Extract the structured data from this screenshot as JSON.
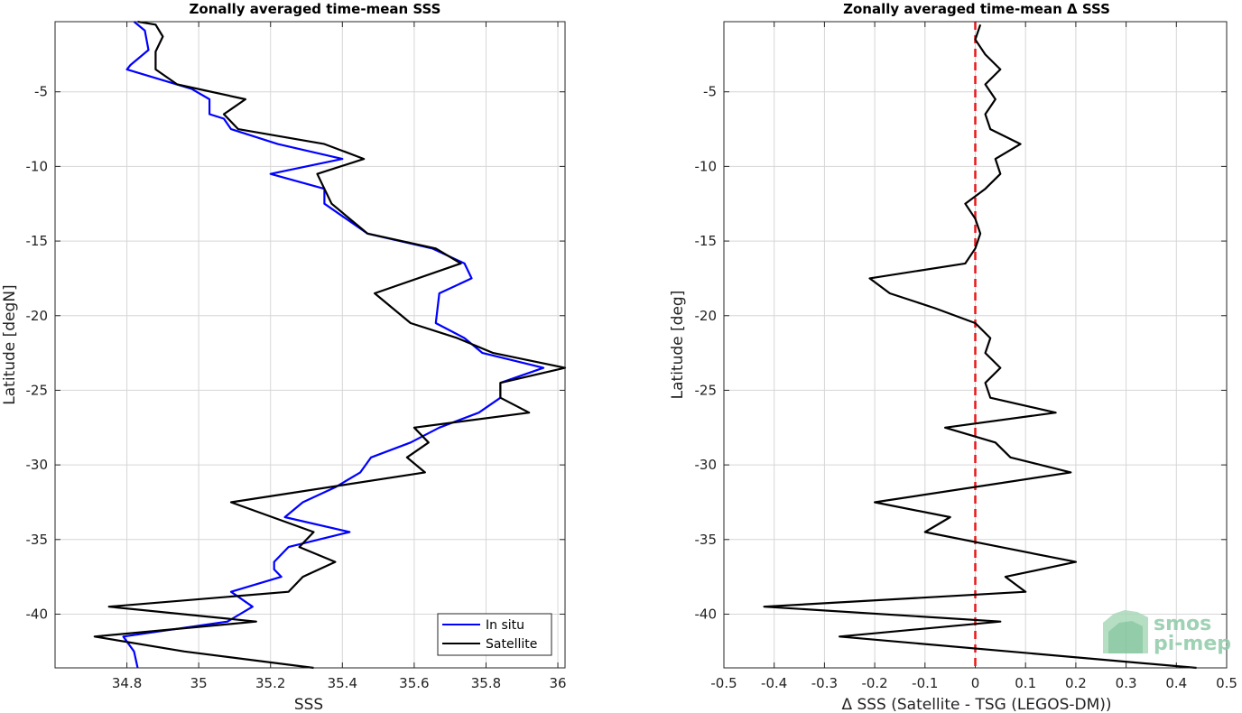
{
  "colors": {
    "in_situ": "#0000ff",
    "satellite": "#000000",
    "zero_line": "#e8191b",
    "grid": "#d6d6d6"
  },
  "logo": {
    "line1": "smos",
    "line2": "pi-mep"
  },
  "chart_data": [
    {
      "type": "line",
      "title": "Zonally averaged time-mean SSS",
      "xlabel": "SSS",
      "ylabel": "Latitude [degN]",
      "xlim": [
        34.6,
        36.02
      ],
      "ylim": [
        -43.6,
        -0.3
      ],
      "xticks": [
        34.8,
        35,
        35.2,
        35.4,
        35.6,
        35.8,
        36
      ],
      "xtick_labels": [
        "34.8",
        "35",
        "35.2",
        "35.4",
        "35.6",
        "35.8",
        "36"
      ],
      "yticks": [
        -5,
        -10,
        -15,
        -20,
        -25,
        -30,
        -35,
        -40
      ],
      "ytick_labels": [
        "-5",
        "-10",
        "-15",
        "-20",
        "-25",
        "-30",
        "-35",
        "-40"
      ],
      "grid": true,
      "legend_position": "bottom-right",
      "series": [
        {
          "name": "In situ",
          "color": "#0000ff",
          "points": [
            [
              34.82,
              -0.3
            ],
            [
              34.85,
              -0.9
            ],
            [
              34.86,
              -2.2
            ],
            [
              34.81,
              -3.2
            ],
            [
              34.8,
              -3.5
            ],
            [
              34.98,
              -4.8
            ],
            [
              35.03,
              -5.5
            ],
            [
              35.03,
              -6.5
            ],
            [
              35.07,
              -6.8
            ],
            [
              35.09,
              -7.5
            ],
            [
              35.22,
              -8.5
            ],
            [
              35.4,
              -9.5
            ],
            [
              35.2,
              -10.5
            ],
            [
              35.35,
              -11.5
            ],
            [
              35.35,
              -12.5
            ],
            [
              35.47,
              -14.5
            ],
            [
              35.65,
              -15.5
            ],
            [
              35.74,
              -16.5
            ],
            [
              35.76,
              -17.5
            ],
            [
              35.67,
              -18.5
            ],
            [
              35.66,
              -20.5
            ],
            [
              35.74,
              -21.5
            ],
            [
              35.79,
              -22.5
            ],
            [
              35.96,
              -23.5
            ],
            [
              35.84,
              -24.5
            ],
            [
              35.84,
              -25.5
            ],
            [
              35.78,
              -26.5
            ],
            [
              35.67,
              -27.5
            ],
            [
              35.59,
              -28.5
            ],
            [
              35.48,
              -29.5
            ],
            [
              35.45,
              -30.5
            ],
            [
              35.38,
              -31.5
            ],
            [
              35.29,
              -32.5
            ],
            [
              35.24,
              -33.5
            ],
            [
              35.42,
              -34.5
            ],
            [
              35.25,
              -35.5
            ],
            [
              35.21,
              -36.5
            ],
            [
              35.21,
              -37.0
            ],
            [
              35.23,
              -37.5
            ],
            [
              35.09,
              -38.5
            ],
            [
              35.15,
              -39.5
            ],
            [
              35.08,
              -40.5
            ],
            [
              34.79,
              -41.5
            ],
            [
              34.82,
              -42.5
            ],
            [
              34.83,
              -43.6
            ]
          ]
        },
        {
          "name": "Satellite",
          "color": "#000000",
          "points": [
            [
              34.83,
              -0.3
            ],
            [
              34.88,
              -0.5
            ],
            [
              34.9,
              -1.3
            ],
            [
              34.88,
              -2.3
            ],
            [
              34.88,
              -3.5
            ],
            [
              34.94,
              -4.5
            ],
            [
              35.13,
              -5.5
            ],
            [
              35.07,
              -6.5
            ],
            [
              35.11,
              -7.5
            ],
            [
              35.35,
              -8.5
            ],
            [
              35.46,
              -9.5
            ],
            [
              35.33,
              -10.5
            ],
            [
              35.35,
              -11.5
            ],
            [
              35.37,
              -12.5
            ],
            [
              35.47,
              -14.5
            ],
            [
              35.66,
              -15.5
            ],
            [
              35.73,
              -16.5
            ],
            [
              35.49,
              -18.5
            ],
            [
              35.59,
              -20.5
            ],
            [
              35.72,
              -21.5
            ],
            [
              35.82,
              -22.5
            ],
            [
              36.02,
              -23.5
            ],
            [
              35.84,
              -24.5
            ],
            [
              35.84,
              -25.5
            ],
            [
              35.92,
              -26.5
            ],
            [
              35.6,
              -27.5
            ],
            [
              35.64,
              -28.5
            ],
            [
              35.58,
              -29.5
            ],
            [
              35.63,
              -30.5
            ],
            [
              35.09,
              -32.5
            ],
            [
              35.32,
              -34.5
            ],
            [
              35.28,
              -35.5
            ],
            [
              35.38,
              -36.5
            ],
            [
              35.29,
              -37.5
            ],
            [
              35.25,
              -38.5
            ],
            [
              34.75,
              -39.5
            ],
            [
              35.16,
              -40.5
            ],
            [
              34.71,
              -41.5
            ],
            [
              34.96,
              -42.5
            ],
            [
              35.32,
              -43.6
            ]
          ]
        }
      ]
    },
    {
      "type": "line",
      "title": "Zonally averaged time-mean Δ SSS",
      "xlabel": "Δ SSS (Satellite - TSG (LEGOS-DM))",
      "ylabel": "Latitude [deg]",
      "xlim": [
        -0.5,
        0.5
      ],
      "ylim": [
        -43.6,
        -0.3
      ],
      "xticks": [
        -0.5,
        -0.4,
        -0.3,
        -0.2,
        -0.1,
        0,
        0.1,
        0.2,
        0.3,
        0.4,
        0.5
      ],
      "xtick_labels": [
        "-0.5",
        "-0.4",
        "-0.3",
        "-0.2",
        "-0.1",
        "0",
        "0.1",
        "0.2",
        "0.3",
        "0.4",
        "0.5"
      ],
      "yticks": [
        -5,
        -10,
        -15,
        -20,
        -25,
        -30,
        -35,
        -40
      ],
      "ytick_labels": [
        "-5",
        "-10",
        "-15",
        "-20",
        "-25",
        "-30",
        "-35",
        "-40"
      ],
      "grid": true,
      "reference_line": {
        "x": 0,
        "color": "#e8191b",
        "style": "dashed"
      },
      "series": [
        {
          "color": "#000000",
          "points": [
            [
              0.01,
              -0.5
            ],
            [
              0,
              -1.5
            ],
            [
              0.02,
              -2.5
            ],
            [
              0.05,
              -3.5
            ],
            [
              0.02,
              -4.5
            ],
            [
              0.04,
              -5.5
            ],
            [
              0.02,
              -6.5
            ],
            [
              0.03,
              -7.5
            ],
            [
              0.09,
              -8.5
            ],
            [
              0.04,
              -9.5
            ],
            [
              0.05,
              -10.5
            ],
            [
              0.02,
              -11.5
            ],
            [
              -0.02,
              -12.5
            ],
            [
              0,
              -13.5
            ],
            [
              0.01,
              -14.5
            ],
            [
              0,
              -15.5
            ],
            [
              -0.02,
              -16.5
            ],
            [
              -0.21,
              -17.5
            ],
            [
              -0.17,
              -18.5
            ],
            [
              -0.08,
              -19.5
            ],
            [
              0,
              -20.5
            ],
            [
              0.03,
              -21.5
            ],
            [
              0.02,
              -22.5
            ],
            [
              0.05,
              -23.5
            ],
            [
              0.02,
              -24.5
            ],
            [
              0.03,
              -25.5
            ],
            [
              0.16,
              -26.5
            ],
            [
              -0.06,
              -27.5
            ],
            [
              0.04,
              -28.5
            ],
            [
              0.07,
              -29.5
            ],
            [
              0.19,
              -30.5
            ],
            [
              -0.2,
              -32.5
            ],
            [
              -0.05,
              -33.5
            ],
            [
              -0.1,
              -34.5
            ],
            [
              0.05,
              -35.5
            ],
            [
              0.2,
              -36.5
            ],
            [
              0.06,
              -37.5
            ],
            [
              0.1,
              -38.5
            ],
            [
              -0.42,
              -39.5
            ],
            [
              0.05,
              -40.5
            ],
            [
              -0.27,
              -41.5
            ],
            [
              0.44,
              -43.6
            ]
          ]
        }
      ]
    }
  ]
}
